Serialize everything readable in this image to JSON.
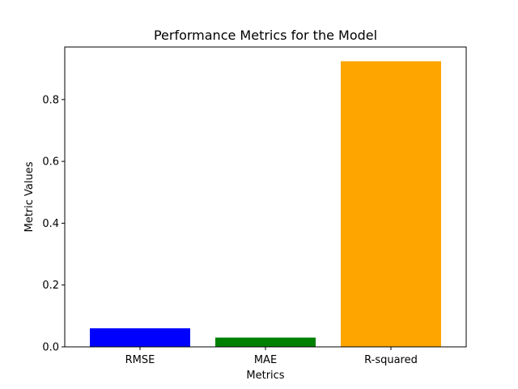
{
  "chart_data": {
    "type": "bar",
    "title": "Performance Metrics for the Model",
    "xlabel": "Metrics",
    "ylabel": "Metric Values",
    "categories": [
      "RMSE",
      "MAE",
      "R-squared"
    ],
    "values": [
      0.06,
      0.03,
      0.924
    ],
    "colors": [
      "#0000ff",
      "#008000",
      "#ffa500"
    ],
    "ylim": [
      0,
      0.97
    ],
    "yticks": [
      0.0,
      0.2,
      0.4,
      0.6,
      0.8
    ],
    "ytick_labels": [
      "0.0",
      "0.2",
      "0.4",
      "0.6",
      "0.8"
    ],
    "grid": false,
    "legend": "none"
  }
}
